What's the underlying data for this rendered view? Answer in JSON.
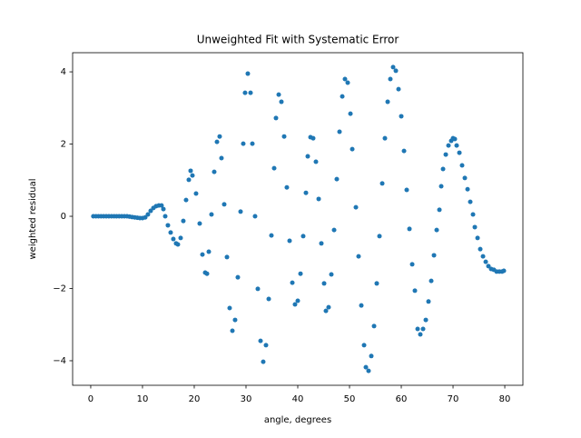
{
  "chart_data": {
    "type": "scatter",
    "title": "Unweighted Fit with Systematic Error",
    "x_label": "angle, degrees",
    "y_label": "weighted residual",
    "color": "#1f77b4",
    "xlim": [
      -3.5,
      83.5
    ],
    "ylim": [
      -4.68,
      4.53
    ],
    "xticks": [
      0,
      10,
      20,
      30,
      40,
      50,
      60,
      70,
      80
    ],
    "yticks": [
      {
        "value": -4,
        "label": "−4"
      },
      {
        "value": -2,
        "label": "−2"
      },
      0,
      2,
      4
    ],
    "x": [
      0.5,
      1,
      1.5,
      2,
      2.5,
      3,
      3.5,
      4,
      4.5,
      5,
      5.5,
      6,
      6.5,
      7,
      7.5,
      8,
      8.5,
      9,
      9.5,
      10,
      10.53,
      11.05,
      11.58,
      12.11,
      12.63,
      13.16,
      13.68,
      14.04,
      14.39,
      14.91,
      15.44,
      15.96,
      16.49,
      16.84,
      17.37,
      17.89,
      18.42,
      18.95,
      19.3,
      19.65,
      20.35,
      21.05,
      21.58,
      22.11,
      22.46,
      22.81,
      23.33,
      23.86,
      24.39,
      24.91,
      25.26,
      25.79,
      26.32,
      26.84,
      27.37,
      27.89,
      28.42,
      28.95,
      29.47,
      29.82,
      30.35,
      30.88,
      31.23,
      31.75,
      32.28,
      32.81,
      33.33,
      33.86,
      34.39,
      34.91,
      35.44,
      35.79,
      36.32,
      36.84,
      37.37,
      37.89,
      38.42,
      38.95,
      39.47,
      40.0,
      40.53,
      41.05,
      41.58,
      41.93,
      42.46,
      42.98,
      43.51,
      44.04,
      44.56,
      45.09,
      45.44,
      45.96,
      46.49,
      47.02,
      47.54,
      48.07,
      48.6,
      49.12,
      49.65,
      50.18,
      50.53,
      51.23,
      51.75,
      52.28,
      52.81,
      53.16,
      53.68,
      54.21,
      54.74,
      55.26,
      55.79,
      56.32,
      56.84,
      57.37,
      57.89,
      58.42,
      58.95,
      59.47,
      60.0,
      60.53,
      61.05,
      61.58,
      62.11,
      62.63,
      63.16,
      63.68,
      64.21,
      64.74,
      65.26,
      65.79,
      66.32,
      66.84,
      67.37,
      67.72,
      68.07,
      68.6,
      69.12,
      69.65,
      70.0,
      70.35,
      70.7,
      71.23,
      71.75,
      72.28,
      72.81,
      73.33,
      73.86,
      74.21,
      74.74,
      75.26,
      75.79,
      76.32,
      76.84,
      77.37,
      77.89,
      78.42,
      78.95,
      79.47,
      79.82
    ],
    "values": [
      0,
      0,
      0,
      0,
      0,
      0,
      0,
      0,
      0,
      0,
      0,
      0,
      0,
      0,
      -0.01,
      -0.02,
      -0.03,
      -0.04,
      -0.05,
      -0.05,
      -0.03,
      0.05,
      0.15,
      0.23,
      0.28,
      0.3,
      0.3,
      0.2,
      0.0,
      -0.25,
      -0.45,
      -0.63,
      -0.75,
      -0.78,
      -0.6,
      -0.13,
      0.45,
      1.01,
      1.26,
      1.13,
      0.63,
      -0.2,
      -1.06,
      -1.56,
      -1.59,
      -0.98,
      0.05,
      1.23,
      2.06,
      2.21,
      1.61,
      0.33,
      -1.13,
      -2.54,
      -3.17,
      -2.87,
      -1.69,
      0.13,
      2.01,
      3.42,
      3.95,
      3.42,
      2.01,
      0,
      -2.01,
      -3.45,
      -4.03,
      -3.57,
      -2.29,
      -0.53,
      1.33,
      2.72,
      3.37,
      3.17,
      2.21,
      0.8,
      -0.68,
      -1.84,
      -2.44,
      -2.34,
      -1.59,
      -0.55,
      0.65,
      1.66,
      2.19,
      2.16,
      1.51,
      0.48,
      -0.75,
      -1.86,
      -2.62,
      -2.52,
      -1.61,
      -0.38,
      1.03,
      2.34,
      3.32,
      3.8,
      3.7,
      2.84,
      1.86,
      0.25,
      -1.11,
      -2.47,
      -3.57,
      -4.18,
      -4.28,
      -3.87,
      -3.04,
      -1.86,
      -0.55,
      0.91,
      2.16,
      3.17,
      3.8,
      4.13,
      4.03,
      3.52,
      2.77,
      1.81,
      0.73,
      -0.35,
      -1.33,
      -2.06,
      -3.12,
      -3.27,
      -3.12,
      -2.87,
      -2.36,
      -1.79,
      -1.08,
      -0.38,
      0.18,
      0.83,
      1.31,
      1.71,
      1.96,
      2.09,
      2.16,
      2.14,
      1.96,
      1.76,
      1.41,
      1.06,
      0.75,
      0.4,
      0.05,
      -0.3,
      -0.6,
      -0.91,
      -1.11,
      -1.26,
      -1.38,
      -1.46,
      -1.48,
      -1.53,
      -1.53,
      -1.53,
      -1.51
    ]
  }
}
